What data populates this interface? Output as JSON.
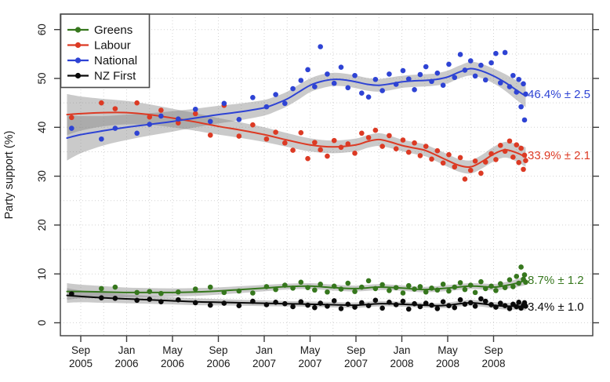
{
  "figure": {
    "title": "",
    "ylabel": "Party support (%)"
  },
  "chart_data": {
    "type": "scatter",
    "title": "",
    "xlabel": "",
    "ylabel": "Party support (%)",
    "ylim": [
      0,
      63
    ],
    "x_unit": "months_since_Sep2005",
    "grid": "dotted; horizontal every 5%, vertical every 2 months",
    "legend_position": "top-left",
    "y_ticks": [
      0,
      10,
      20,
      30,
      40,
      50,
      60
    ],
    "x_ticks": [
      {
        "month": "Sep",
        "year": "2005",
        "t": 0
      },
      {
        "month": "Jan",
        "year": "2006",
        "t": 4
      },
      {
        "month": "May",
        "year": "2006",
        "t": 8
      },
      {
        "month": "Sep",
        "year": "2006",
        "t": 12
      },
      {
        "month": "Jan",
        "year": "2007",
        "t": 16
      },
      {
        "month": "May",
        "year": "2007",
        "t": 20
      },
      {
        "month": "Sep",
        "year": "2007",
        "t": 24
      },
      {
        "month": "Jan",
        "year": "2008",
        "t": 28
      },
      {
        "month": "May",
        "year": "2008",
        "t": 32
      },
      {
        "month": "Sep",
        "year": "2008",
        "t": 36
      }
    ],
    "series": [
      {
        "name": "Greens",
        "color": "#36771d",
        "end_label": "8.7% ± 1.2",
        "line": [
          [
            -1.2,
            6.4,
            1.7
          ],
          [
            0,
            6.4,
            1.4
          ],
          [
            2,
            6.3,
            1.2
          ],
          [
            4,
            6.2,
            1.0
          ],
          [
            6,
            6.2,
            0.9
          ],
          [
            8,
            6.2,
            0.85
          ],
          [
            10,
            6.3,
            0.8
          ],
          [
            12,
            6.5,
            0.75
          ],
          [
            14,
            6.8,
            0.7
          ],
          [
            16,
            7.1,
            0.65
          ],
          [
            18,
            7.4,
            0.6
          ],
          [
            20,
            7.5,
            0.6
          ],
          [
            22,
            7.2,
            0.6
          ],
          [
            24,
            7.0,
            0.6
          ],
          [
            26,
            7.3,
            0.6
          ],
          [
            28,
            7.1,
            0.55
          ],
          [
            30,
            6.8,
            0.55
          ],
          [
            32,
            7.1,
            0.6
          ],
          [
            34,
            7.5,
            0.6
          ],
          [
            36,
            7.3,
            0.65
          ],
          [
            37,
            7.6,
            0.7
          ],
          [
            38,
            8.1,
            0.8
          ],
          [
            38.8,
            8.7,
            1.0
          ]
        ]
      },
      {
        "name": "Labour",
        "color": "#dc3a24",
        "end_label": "33.9% ± 2.1",
        "line": [
          [
            -1.2,
            42.6,
            4.2
          ],
          [
            0,
            42.8,
            3.5
          ],
          [
            2,
            43.0,
            2.8
          ],
          [
            4,
            43.0,
            2.4
          ],
          [
            6,
            42.6,
            2.1
          ],
          [
            8,
            41.9,
            1.9
          ],
          [
            10,
            41.1,
            1.8
          ],
          [
            12,
            40.2,
            1.7
          ],
          [
            14,
            39.4,
            1.6
          ],
          [
            16,
            38.5,
            1.5
          ],
          [
            18,
            37.4,
            1.4
          ],
          [
            20,
            36.4,
            1.35
          ],
          [
            22,
            36.0,
            1.3
          ],
          [
            24,
            36.4,
            1.3
          ],
          [
            25,
            37.1,
            1.3
          ],
          [
            26,
            37.5,
            1.3
          ],
          [
            27,
            37.0,
            1.25
          ],
          [
            28,
            36.3,
            1.2
          ],
          [
            29,
            35.8,
            1.2
          ],
          [
            30,
            35.3,
            1.2
          ],
          [
            31,
            34.3,
            1.25
          ],
          [
            32,
            33.2,
            1.3
          ],
          [
            33,
            32.2,
            1.3
          ],
          [
            34,
            31.9,
            1.35
          ],
          [
            35,
            33.0,
            1.4
          ],
          [
            36,
            34.5,
            1.5
          ],
          [
            37,
            35.4,
            1.6
          ],
          [
            38,
            34.8,
            1.8
          ],
          [
            38.8,
            33.9,
            2.0
          ]
        ]
      },
      {
        "name": "National",
        "color": "#2e43d4",
        "end_label": "46.4% ± 2.5",
        "line": [
          [
            -1.2,
            37.8,
            4.6
          ],
          [
            0,
            38.5,
            3.8
          ],
          [
            2,
            39.3,
            3.0
          ],
          [
            4,
            40.0,
            2.6
          ],
          [
            6,
            40.6,
            2.3
          ],
          [
            8,
            41.2,
            2.1
          ],
          [
            10,
            41.9,
            1.9
          ],
          [
            12,
            42.6,
            1.8
          ],
          [
            14,
            43.2,
            1.7
          ],
          [
            16,
            44.0,
            1.6
          ],
          [
            17,
            44.8,
            1.55
          ],
          [
            18,
            45.8,
            1.5
          ],
          [
            19,
            47.2,
            1.5
          ],
          [
            20,
            48.6,
            1.4
          ],
          [
            21,
            49.4,
            1.4
          ],
          [
            22,
            49.8,
            1.35
          ],
          [
            23,
            49.7,
            1.3
          ],
          [
            24,
            49.3,
            1.3
          ],
          [
            25,
            48.8,
            1.3
          ],
          [
            26,
            48.6,
            1.3
          ],
          [
            27,
            48.9,
            1.3
          ],
          [
            28,
            49.3,
            1.25
          ],
          [
            29,
            49.5,
            1.25
          ],
          [
            30,
            49.6,
            1.25
          ],
          [
            31,
            49.8,
            1.25
          ],
          [
            32,
            50.3,
            1.3
          ],
          [
            33,
            51.3,
            1.3
          ],
          [
            34,
            52.0,
            1.4
          ],
          [
            35,
            51.5,
            1.45
          ],
          [
            36,
            50.5,
            1.5
          ],
          [
            37,
            49.2,
            1.7
          ],
          [
            38,
            47.6,
            2.0
          ],
          [
            38.8,
            46.4,
            2.3
          ]
        ]
      },
      {
        "name": "NZ First",
        "color": "#0a0a0a",
        "end_label": "3.4% ± 1.0",
        "line": [
          [
            -1.2,
            5.6,
            1.5
          ],
          [
            0,
            5.4,
            1.2
          ],
          [
            2,
            5.1,
            1.0
          ],
          [
            4,
            4.9,
            0.9
          ],
          [
            6,
            4.7,
            0.8
          ],
          [
            8,
            4.5,
            0.75
          ],
          [
            10,
            4.3,
            0.7
          ],
          [
            12,
            4.2,
            0.65
          ],
          [
            14,
            4.1,
            0.6
          ],
          [
            16,
            4.0,
            0.6
          ],
          [
            18,
            3.9,
            0.55
          ],
          [
            20,
            3.8,
            0.55
          ],
          [
            22,
            3.7,
            0.55
          ],
          [
            24,
            3.6,
            0.55
          ],
          [
            26,
            3.9,
            0.55
          ],
          [
            28,
            3.8,
            0.5
          ],
          [
            30,
            3.6,
            0.5
          ],
          [
            31,
            3.5,
            0.5
          ],
          [
            32,
            3.6,
            0.55
          ],
          [
            33,
            3.9,
            0.55
          ],
          [
            34,
            4.1,
            0.6
          ],
          [
            35,
            3.9,
            0.6
          ],
          [
            36,
            3.6,
            0.65
          ],
          [
            37,
            3.4,
            0.7
          ],
          [
            38,
            3.4,
            0.75
          ],
          [
            38.8,
            3.4,
            0.85
          ]
        ]
      }
    ],
    "polls": {
      "columns": [
        "t",
        "Greens",
        "Labour",
        "National",
        "NZ First"
      ],
      "rows": [
        [
          -0.8,
          6.0,
          42.0,
          39.8,
          5.9
        ],
        [
          1.8,
          7.0,
          45.0,
          37.6,
          5.1
        ],
        [
          3.0,
          7.3,
          43.8,
          39.8,
          5.0
        ],
        [
          4.9,
          6.2,
          45.0,
          38.8,
          4.6
        ],
        [
          6.0,
          6.4,
          42.1,
          40.6,
          4.8
        ],
        [
          7.0,
          6.0,
          43.5,
          42.3,
          4.3
        ],
        [
          8.5,
          6.3,
          40.9,
          41.7,
          4.7
        ],
        [
          10.0,
          6.9,
          42.8,
          43.7,
          4.1
        ],
        [
          11.3,
          7.3,
          38.4,
          41.2,
          3.6
        ],
        [
          12.5,
          6.2,
          44.5,
          44.9,
          4.0
        ],
        [
          13.8,
          6.5,
          38.2,
          41.6,
          3.5
        ],
        [
          15.0,
          6.1,
          40.5,
          46.1,
          4.4
        ],
        [
          16.2,
          7.4,
          37.6,
          44.2,
          3.7
        ],
        [
          17.0,
          6.8,
          39.0,
          46.7,
          4.2
        ],
        [
          17.8,
          7.7,
          36.8,
          44.9,
          3.9
        ],
        [
          18.5,
          7.1,
          35.3,
          47.9,
          3.3
        ],
        [
          19.2,
          8.3,
          38.9,
          49.6,
          4.3
        ],
        [
          19.8,
          7.2,
          33.6,
          51.8,
          3.6
        ],
        [
          20.4,
          6.7,
          36.9,
          48.3,
          3.1
        ],
        [
          20.9,
          7.9,
          35.4,
          56.5,
          4.0
        ],
        [
          21.5,
          6.3,
          34.1,
          50.9,
          3.4
        ],
        [
          22.1,
          7.5,
          37.3,
          49.0,
          4.5
        ],
        [
          22.7,
          6.9,
          35.9,
          52.3,
          2.9
        ],
        [
          23.3,
          8.1,
          36.6,
          48.1,
          3.8
        ],
        [
          23.9,
          6.4,
          34.7,
          50.6,
          3.2
        ],
        [
          24.5,
          7.3,
          38.8,
          47.0,
          4.1
        ],
        [
          25.1,
          8.6,
          37.9,
          46.2,
          3.5
        ],
        [
          25.7,
          7.0,
          39.4,
          49.8,
          4.6
        ],
        [
          26.3,
          7.8,
          36.1,
          47.5,
          3.0
        ],
        [
          26.9,
          6.6,
          38.3,
          50.9,
          4.2
        ],
        [
          27.5,
          7.2,
          35.6,
          48.8,
          3.7
        ],
        [
          28.1,
          6.1,
          37.4,
          51.6,
          4.4
        ],
        [
          28.6,
          7.6,
          34.9,
          49.9,
          2.8
        ],
        [
          29.1,
          6.9,
          36.8,
          47.7,
          3.9
        ],
        [
          29.6,
          7.4,
          34.2,
          50.8,
          3.3
        ],
        [
          30.1,
          6.3,
          36.1,
          52.4,
          4.0
        ],
        [
          30.6,
          7.1,
          33.5,
          49.4,
          3.6
        ],
        [
          31.1,
          6.7,
          35.2,
          51.1,
          2.9
        ],
        [
          31.6,
          7.9,
          32.7,
          48.6,
          4.3
        ],
        [
          32.1,
          6.5,
          34.4,
          52.9,
          3.5
        ],
        [
          32.6,
          7.3,
          31.9,
          50.2,
          3.1
        ],
        [
          33.1,
          8.2,
          33.8,
          54.9,
          4.7
        ],
        [
          33.5,
          6.8,
          29.4,
          51.7,
          3.8
        ],
        [
          34.0,
          7.7,
          31.2,
          53.6,
          4.1
        ],
        [
          34.4,
          6.2,
          33.1,
          50.5,
          3.4
        ],
        [
          34.9,
          8.4,
          30.6,
          52.7,
          4.9
        ],
        [
          35.3,
          7.0,
          32.9,
          49.7,
          4.4
        ],
        [
          35.8,
          7.5,
          34.6,
          53.2,
          3.7
        ],
        [
          36.2,
          6.6,
          33.4,
          55.1,
          3.2
        ],
        [
          36.6,
          8.0,
          36.3,
          49.1,
          4.0
        ],
        [
          37.0,
          7.2,
          35.1,
          55.3,
          3.5
        ],
        [
          37.4,
          8.8,
          37.2,
          48.3,
          2.9
        ],
        [
          37.7,
          7.4,
          33.9,
          50.6,
          3.8
        ],
        [
          38.0,
          9.5,
          36.4,
          47.2,
          3.3
        ],
        [
          38.2,
          8.1,
          32.8,
          49.8,
          4.2
        ],
        [
          38.4,
          11.4,
          35.7,
          44.2,
          3.0
        ],
        [
          38.6,
          8.9,
          31.4,
          48.9,
          3.6
        ],
        [
          38.7,
          9.8,
          34.3,
          41.5,
          4.1
        ],
        [
          38.8,
          8.3,
          33.2,
          46.8,
          3.4
        ]
      ]
    }
  }
}
